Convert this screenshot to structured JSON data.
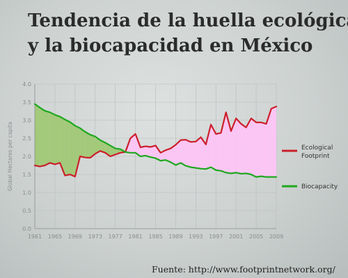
{
  "title_lines": [
    "Tendencia de la huella ecológica",
    "y la biocapacidad en México"
  ],
  "source": "Fuente: http://www.footprintnetwork.org/",
  "colors": {
    "footprint": "#cc1f2a",
    "biocapacity": "#1ea81e",
    "deficit_fill": "#fbc6f4",
    "reserve_fill": "#a3c97a",
    "grid": "#b9bcbc",
    "axis_text": "#8a8c8c"
  },
  "chart_data": {
    "type": "line",
    "title": "Tendencia de la huella ecológica y la biocapacidad en México",
    "xlabel": "",
    "ylabel": "Global Hectares per capita",
    "xlim": [
      1961,
      2009
    ],
    "ylim": [
      0,
      4.0
    ],
    "xticks": [
      "1961",
      "1965",
      "1969",
      "1973",
      "1977",
      "1981",
      "1985",
      "1989",
      "1993",
      "1997",
      "2001",
      "2005",
      "2009"
    ],
    "yticks": [
      "0.0",
      "0.5",
      "1.0",
      "1.5",
      "2.0",
      "2.5",
      "3.0",
      "3.5",
      "4.0"
    ],
    "grid": true,
    "legend_position": "right",
    "x": [
      1961,
      1962,
      1963,
      1964,
      1965,
      1966,
      1967,
      1968,
      1969,
      1970,
      1971,
      1972,
      1973,
      1974,
      1975,
      1976,
      1977,
      1978,
      1979,
      1980,
      1981,
      1982,
      1983,
      1984,
      1985,
      1986,
      1987,
      1988,
      1989,
      1990,
      1991,
      1992,
      1993,
      1994,
      1995,
      1996,
      1997,
      1998,
      1999,
      2000,
      2001,
      2002,
      2003,
      2004,
      2005,
      2006,
      2007,
      2008,
      2009
    ],
    "series": [
      {
        "name": "Ecological Footprint",
        "values": [
          1.75,
          1.72,
          1.75,
          1.82,
          1.78,
          1.82,
          1.47,
          1.5,
          1.44,
          2.0,
          1.97,
          1.96,
          2.07,
          2.15,
          2.1,
          2.0,
          2.05,
          2.1,
          2.12,
          2.5,
          2.62,
          2.25,
          2.28,
          2.26,
          2.3,
          2.1,
          2.17,
          2.22,
          2.32,
          2.45,
          2.46,
          2.4,
          2.41,
          2.53,
          2.33,
          2.88,
          2.62,
          2.65,
          3.22,
          2.7,
          3.05,
          2.9,
          2.8,
          3.05,
          2.94,
          2.94,
          2.9,
          3.32,
          3.38
        ]
      },
      {
        "name": "Biocapacity",
        "values": [
          3.45,
          3.35,
          3.26,
          3.22,
          3.15,
          3.1,
          3.02,
          2.95,
          2.85,
          2.78,
          2.68,
          2.6,
          2.55,
          2.45,
          2.38,
          2.3,
          2.22,
          2.2,
          2.12,
          2.1,
          2.1,
          2.0,
          2.02,
          1.98,
          1.95,
          1.88,
          1.9,
          1.84,
          1.76,
          1.82,
          1.74,
          1.7,
          1.68,
          1.66,
          1.65,
          1.7,
          1.62,
          1.6,
          1.55,
          1.53,
          1.55,
          1.52,
          1.53,
          1.5,
          1.43,
          1.45,
          1.43,
          1.43,
          1.43
        ]
      }
    ]
  }
}
